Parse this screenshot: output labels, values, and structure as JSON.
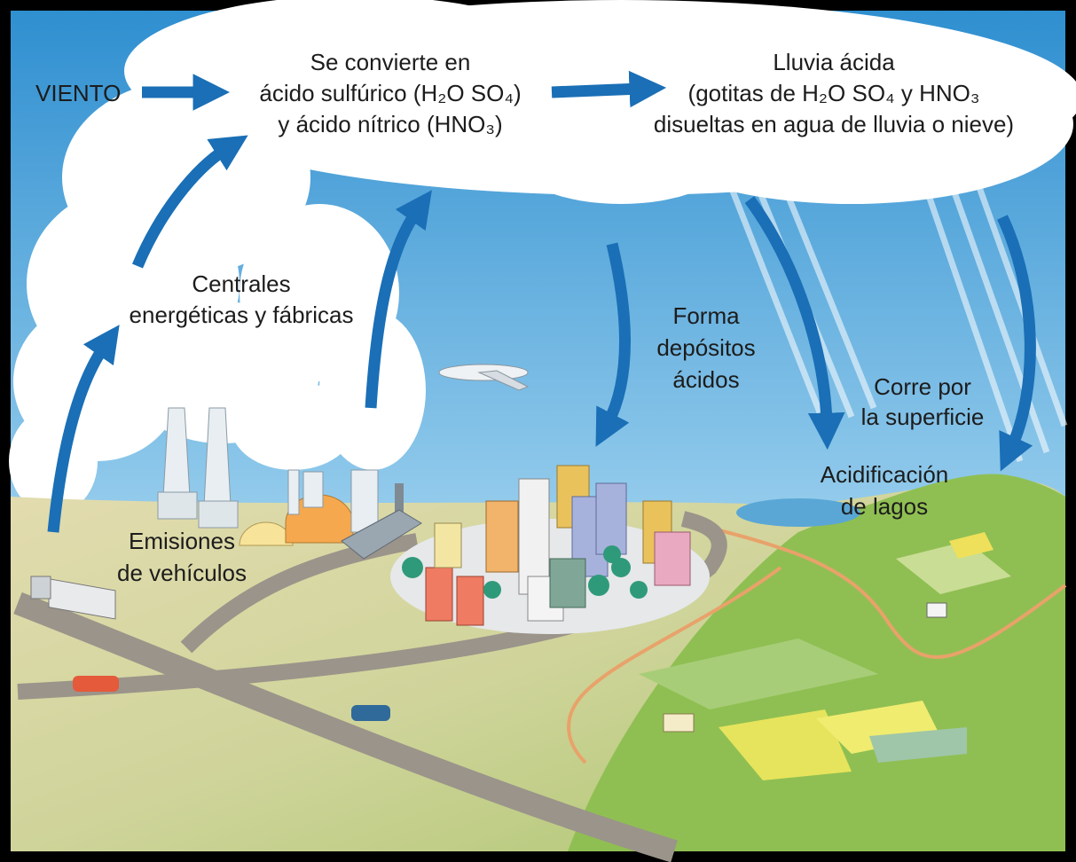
{
  "labels": [
    {
      "lines": [
        "VIENTO"
      ]
    },
    {
      "lines": [
        "Se convierte en",
        "ácido sulfúrico (H₂O SO₄)",
        "y ácido nítrico (HNO₃)"
      ]
    },
    {
      "lines": [
        "Lluvia ácida",
        "(gotitas de H₂O SO₄ y HNO₃",
        "disueltas en agua de lluvia o nieve)"
      ]
    },
    {
      "lines": [
        "Centrales",
        "energéticas y fábricas"
      ]
    },
    {
      "lines": [
        "Forma",
        "depósitos",
        "ácidos"
      ]
    },
    {
      "lines": [
        "Corre por",
        "la superficie"
      ]
    },
    {
      "lines": [
        "Acidificación",
        "de lagos"
      ]
    },
    {
      "lines": [
        "Emisiones",
        "de vehículos"
      ]
    }
  ]
}
